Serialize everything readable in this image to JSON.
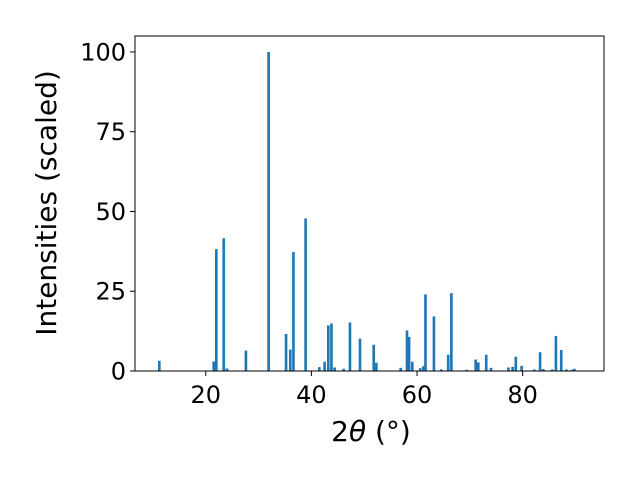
{
  "chart_data": {
    "type": "bar",
    "xlabel_prefix": "2",
    "xlabel_symbol": "θ",
    "xlabel_suffix": " (°)",
    "ylabel": "Intensities (scaled)",
    "xlim": [
      6.6,
      95.4
    ],
    "ylim": [
      0,
      105
    ],
    "xticks": [
      20,
      40,
      60,
      80
    ],
    "yticks": [
      0,
      25,
      50,
      75,
      100
    ],
    "grid": false,
    "bar_color": "#1f77b4",
    "bar_width": 0.5,
    "x": [
      11.2,
      21.5,
      22.0,
      23.4,
      24.0,
      27.6,
      31.9,
      35.2,
      36.0,
      36.6,
      38.9,
      41.5,
      42.5,
      43.2,
      43.8,
      44.4,
      46.1,
      47.3,
      49.2,
      51.8,
      52.3,
      56.9,
      58.1,
      58.5,
      59.1,
      60.6,
      61.2,
      61.6,
      63.2,
      64.6,
      65.9,
      66.5,
      69.4,
      71.1,
      71.6,
      73.1,
      74.0,
      77.3,
      78.1,
      78.7,
      79.8,
      82.2,
      83.3,
      83.9,
      85.6,
      86.3,
      87.3,
      88.3,
      89.3,
      89.8
    ],
    "values": [
      3.2,
      3.0,
      38.2,
      41.6,
      0.8,
      6.4,
      100.0,
      11.6,
      6.7,
      37.3,
      47.8,
      1.2,
      2.9,
      14.3,
      14.9,
      1.1,
      0.7,
      15.2,
      10.1,
      8.2,
      2.6,
      1.0,
      12.7,
      10.7,
      2.9,
      0.9,
      1.5,
      24.0,
      17.1,
      0.5,
      5.1,
      24.4,
      0.4,
      3.6,
      2.7,
      5.1,
      1.0,
      1.1,
      1.3,
      4.5,
      1.6,
      0.5,
      5.9,
      0.6,
      0.5,
      11.0,
      6.6,
      0.5,
      0.4,
      0.7
    ]
  }
}
